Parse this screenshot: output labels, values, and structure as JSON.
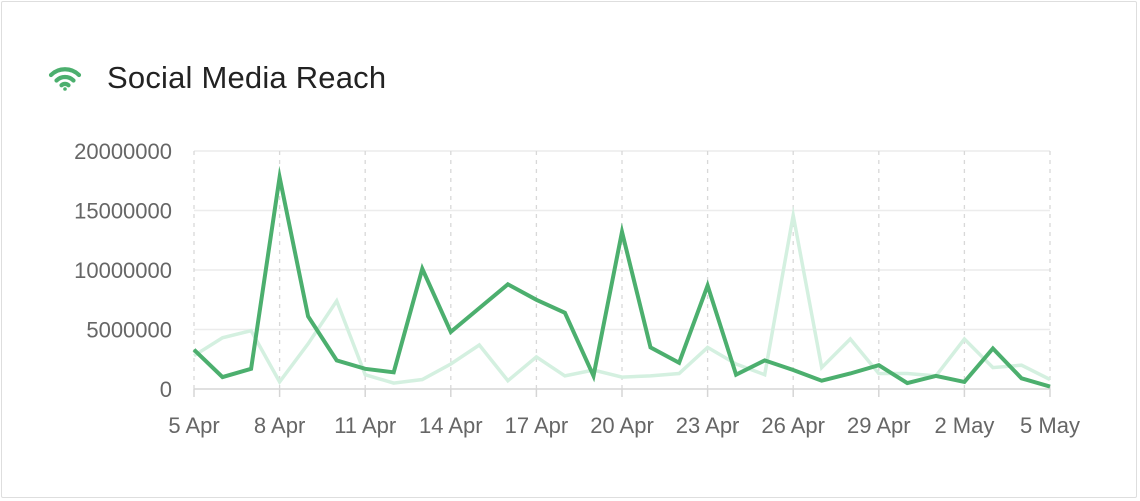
{
  "card": {
    "title": "Social Media Reach",
    "icon": "wifi-icon",
    "accent": "#4caf6e"
  },
  "chart_data": {
    "type": "line",
    "title": "Social Media Reach",
    "xlabel": "",
    "ylabel": "",
    "ylim": [
      0,
      20000000
    ],
    "yticks": [
      "20000000",
      "15000000",
      "10000000",
      "5000000",
      "0"
    ],
    "ytick_values": [
      20000000,
      15000000,
      10000000,
      5000000,
      0
    ],
    "xticks": [
      "5 Apr",
      "8 Apr",
      "11 Apr",
      "14 Apr",
      "17 Apr",
      "20 Apr",
      "23 Apr",
      "26 Apr",
      "29 Apr",
      "2 May",
      "5 May"
    ],
    "x": [
      "5 Apr",
      "6 Apr",
      "7 Apr",
      "8 Apr",
      "9 Apr",
      "10 Apr",
      "11 Apr",
      "12 Apr",
      "13 Apr",
      "14 Apr",
      "15 Apr",
      "16 Apr",
      "17 Apr",
      "18 Apr",
      "19 Apr",
      "20 Apr",
      "21 Apr",
      "22 Apr",
      "23 Apr",
      "24 Apr",
      "25 Apr",
      "26 Apr",
      "27 Apr",
      "28 Apr",
      "29 Apr",
      "30 Apr",
      "1 May",
      "2 May",
      "3 May",
      "4 May",
      "5 May"
    ],
    "grid": true,
    "legend": "none",
    "series": [
      {
        "color": "#4caf6e",
        "values": [
          3300000,
          1000000,
          1700000,
          17800000,
          6100000,
          2400000,
          1700000,
          1400000,
          10100000,
          4800000,
          6800000,
          8800000,
          7500000,
          6400000,
          1100000,
          13200000,
          3500000,
          2200000,
          8700000,
          1200000,
          2400000,
          1600000,
          700000,
          1300000,
          2000000,
          500000,
          1100000,
          600000,
          3400000,
          900000,
          200000
        ]
      },
      {
        "color": "#d4f0e0",
        "values": [
          2800000,
          4300000,
          4900000,
          600000,
          3800000,
          7400000,
          1200000,
          500000,
          800000,
          2100000,
          3700000,
          700000,
          2700000,
          1100000,
          1600000,
          1000000,
          1100000,
          1300000,
          3500000,
          2100000,
          1200000,
          14600000,
          1800000,
          4200000,
          1300000,
          1300000,
          1100000,
          4200000,
          1800000,
          2000000,
          800000
        ]
      }
    ]
  }
}
